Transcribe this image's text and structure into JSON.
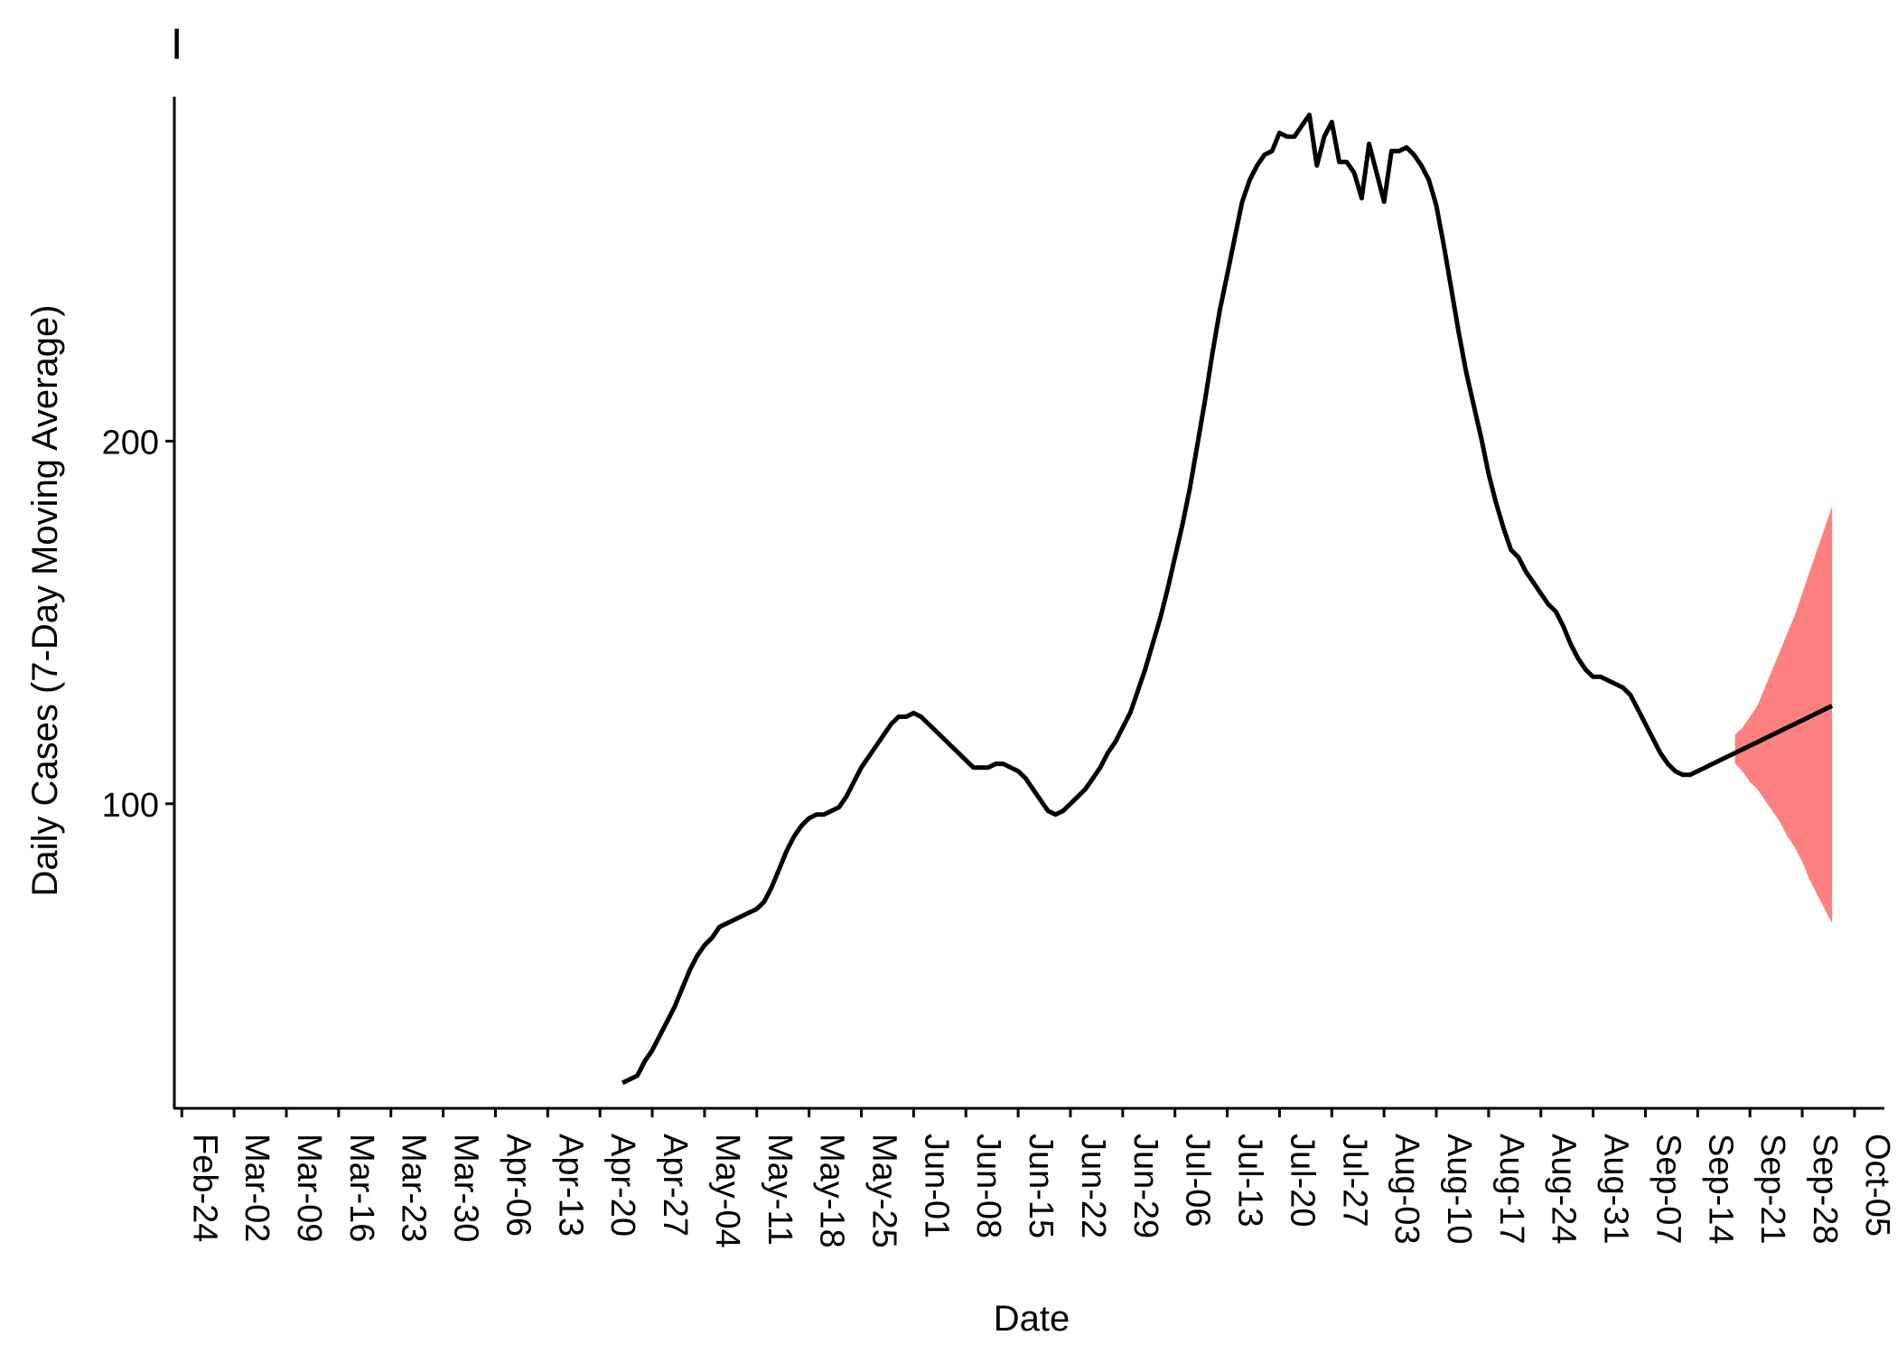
{
  "panel_tag": "I",
  "chart_data": {
    "type": "line",
    "title": "",
    "xlabel": "Date",
    "ylabel": "Daily Cases (7-Day Moving Average)",
    "x_tick_labels": [
      "Feb-24",
      "Mar-02",
      "Mar-09",
      "Mar-16",
      "Mar-23",
      "Mar-30",
      "Apr-06",
      "Apr-13",
      "Apr-20",
      "Apr-27",
      "May-04",
      "May-11",
      "May-18",
      "May-25",
      "Jun-01",
      "Jun-08",
      "Jun-15",
      "Jun-22",
      "Jun-29",
      "Jul-06",
      "Jul-13",
      "Jul-20",
      "Jul-27",
      "Aug-03",
      "Aug-10",
      "Aug-17",
      "Aug-24",
      "Aug-31",
      "Sep-07",
      "Sep-14",
      "Sep-21",
      "Sep-28",
      "Oct-05"
    ],
    "y_ticks": [
      100,
      200
    ],
    "ylim": [
      16,
      295
    ],
    "xlim": [
      "2020-02-23",
      "2020-10-09"
    ],
    "grid": false,
    "legend": "none",
    "colors": {
      "line": "#000000",
      "ribbon": "#FF8080"
    },
    "series": [
      {
        "values": [
          [
            "2020-04-23",
            23
          ],
          [
            "2020-04-24",
            24
          ],
          [
            "2020-04-25",
            25
          ],
          [
            "2020-04-26",
            29
          ],
          [
            "2020-04-27",
            32
          ],
          [
            "2020-04-28",
            36
          ],
          [
            "2020-04-29",
            40
          ],
          [
            "2020-04-30",
            44
          ],
          [
            "2020-05-01",
            49
          ],
          [
            "2020-05-02",
            54
          ],
          [
            "2020-05-03",
            58
          ],
          [
            "2020-05-04",
            61
          ],
          [
            "2020-05-05",
            63
          ],
          [
            "2020-05-06",
            66
          ],
          [
            "2020-05-07",
            67
          ],
          [
            "2020-05-08",
            68
          ],
          [
            "2020-05-09",
            69
          ],
          [
            "2020-05-10",
            70
          ],
          [
            "2020-05-11",
            71
          ],
          [
            "2020-05-12",
            73
          ],
          [
            "2020-05-13",
            77
          ],
          [
            "2020-05-14",
            82
          ],
          [
            "2020-05-15",
            87
          ],
          [
            "2020-05-16",
            91
          ],
          [
            "2020-05-17",
            94
          ],
          [
            "2020-05-18",
            96
          ],
          [
            "2020-05-19",
            97
          ],
          [
            "2020-05-20",
            97
          ],
          [
            "2020-05-21",
            98
          ],
          [
            "2020-05-22",
            99
          ],
          [
            "2020-05-23",
            102
          ],
          [
            "2020-05-24",
            106
          ],
          [
            "2020-05-25",
            110
          ],
          [
            "2020-05-26",
            113
          ],
          [
            "2020-05-27",
            116
          ],
          [
            "2020-05-28",
            119
          ],
          [
            "2020-05-29",
            122
          ],
          [
            "2020-05-30",
            124
          ],
          [
            "2020-05-31",
            124
          ],
          [
            "2020-06-01",
            125
          ],
          [
            "2020-06-02",
            124
          ],
          [
            "2020-06-03",
            122
          ],
          [
            "2020-06-04",
            120
          ],
          [
            "2020-06-05",
            118
          ],
          [
            "2020-06-06",
            116
          ],
          [
            "2020-06-07",
            114
          ],
          [
            "2020-06-08",
            112
          ],
          [
            "2020-06-09",
            110
          ],
          [
            "2020-06-10",
            110
          ],
          [
            "2020-06-11",
            110
          ],
          [
            "2020-06-12",
            111
          ],
          [
            "2020-06-13",
            111
          ],
          [
            "2020-06-14",
            110
          ],
          [
            "2020-06-15",
            109
          ],
          [
            "2020-06-16",
            107
          ],
          [
            "2020-06-17",
            104
          ],
          [
            "2020-06-18",
            101
          ],
          [
            "2020-06-19",
            98
          ],
          [
            "2020-06-20",
            97
          ],
          [
            "2020-06-21",
            98
          ],
          [
            "2020-06-22",
            100
          ],
          [
            "2020-06-23",
            102
          ],
          [
            "2020-06-24",
            104
          ],
          [
            "2020-06-25",
            107
          ],
          [
            "2020-06-26",
            110
          ],
          [
            "2020-06-27",
            114
          ],
          [
            "2020-06-28",
            117
          ],
          [
            "2020-06-29",
            121
          ],
          [
            "2020-06-30",
            125
          ],
          [
            "2020-07-01",
            131
          ],
          [
            "2020-07-02",
            137
          ],
          [
            "2020-07-03",
            144
          ],
          [
            "2020-07-04",
            151
          ],
          [
            "2020-07-05",
            159
          ],
          [
            "2020-07-06",
            168
          ],
          [
            "2020-07-07",
            177
          ],
          [
            "2020-07-08",
            187
          ],
          [
            "2020-07-09",
            199
          ],
          [
            "2020-07-10",
            211
          ],
          [
            "2020-07-11",
            224
          ],
          [
            "2020-07-12",
            236
          ],
          [
            "2020-07-13",
            246
          ],
          [
            "2020-07-14",
            256
          ],
          [
            "2020-07-15",
            266
          ],
          [
            "2020-07-16",
            272
          ],
          [
            "2020-07-17",
            276
          ],
          [
            "2020-07-18",
            279
          ],
          [
            "2020-07-19",
            280
          ],
          [
            "2020-07-20",
            285
          ],
          [
            "2020-07-21",
            284
          ],
          [
            "2020-07-22",
            284
          ],
          [
            "2020-07-23",
            287
          ],
          [
            "2020-07-24",
            290
          ],
          [
            "2020-07-25",
            276
          ],
          [
            "2020-07-26",
            284
          ],
          [
            "2020-07-27",
            288
          ],
          [
            "2020-07-28",
            277
          ],
          [
            "2020-07-29",
            277
          ],
          [
            "2020-07-30",
            274
          ],
          [
            "2020-07-31",
            267
          ],
          [
            "2020-08-01",
            282
          ],
          [
            "2020-08-02",
            274
          ],
          [
            "2020-08-03",
            266
          ],
          [
            "2020-08-04",
            280
          ],
          [
            "2020-08-05",
            280
          ],
          [
            "2020-08-06",
            281
          ],
          [
            "2020-08-07",
            279
          ],
          [
            "2020-08-08",
            276
          ],
          [
            "2020-08-09",
            272
          ],
          [
            "2020-08-10",
            265
          ],
          [
            "2020-08-11",
            254
          ],
          [
            "2020-08-12",
            242
          ],
          [
            "2020-08-13",
            230
          ],
          [
            "2020-08-14",
            219
          ],
          [
            "2020-08-15",
            210
          ],
          [
            "2020-08-16",
            201
          ],
          [
            "2020-08-17",
            191
          ],
          [
            "2020-08-18",
            183
          ],
          [
            "2020-08-19",
            176
          ],
          [
            "2020-08-20",
            170
          ],
          [
            "2020-08-21",
            168
          ],
          [
            "2020-08-22",
            164
          ],
          [
            "2020-08-23",
            161
          ],
          [
            "2020-08-24",
            158
          ],
          [
            "2020-08-25",
            155
          ],
          [
            "2020-08-26",
            153
          ],
          [
            "2020-08-27",
            149
          ],
          [
            "2020-08-28",
            144
          ],
          [
            "2020-08-29",
            140
          ],
          [
            "2020-08-30",
            137
          ],
          [
            "2020-08-31",
            135
          ],
          [
            "2020-09-01",
            135
          ],
          [
            "2020-09-02",
            134
          ],
          [
            "2020-09-03",
            133
          ],
          [
            "2020-09-04",
            132
          ],
          [
            "2020-09-05",
            130
          ],
          [
            "2020-09-06",
            126
          ],
          [
            "2020-09-07",
            122
          ],
          [
            "2020-09-08",
            118
          ],
          [
            "2020-09-09",
            114
          ],
          [
            "2020-09-10",
            111
          ],
          [
            "2020-09-11",
            109
          ],
          [
            "2020-09-12",
            108
          ],
          [
            "2020-09-13",
            108
          ],
          [
            "2020-09-14",
            109
          ],
          [
            "2020-09-15",
            110
          ],
          [
            "2020-09-16",
            111
          ],
          [
            "2020-09-17",
            112
          ],
          [
            "2020-09-18",
            113
          ],
          [
            "2020-09-19",
            114
          ],
          [
            "2020-09-20",
            115
          ],
          [
            "2020-09-21",
            116
          ],
          [
            "2020-09-22",
            117
          ],
          [
            "2020-09-23",
            118
          ],
          [
            "2020-09-24",
            119
          ],
          [
            "2020-09-25",
            120
          ],
          [
            "2020-09-26",
            121
          ],
          [
            "2020-09-27",
            122
          ],
          [
            "2020-09-28",
            123
          ],
          [
            "2020-09-29",
            124
          ],
          [
            "2020-09-30",
            125
          ],
          [
            "2020-10-01",
            126
          ],
          [
            "2020-10-02",
            127
          ]
        ]
      }
    ],
    "ribbon": {
      "x": [
        "2020-09-19",
        "2020-09-20",
        "2020-09-21",
        "2020-09-22",
        "2020-09-23",
        "2020-09-24",
        "2020-09-25",
        "2020-09-26",
        "2020-09-27",
        "2020-09-28",
        "2020-09-29",
        "2020-09-30",
        "2020-10-01",
        "2020-10-02"
      ],
      "lower": [
        111,
        109,
        106,
        104,
        101,
        98,
        95,
        91,
        88,
        84,
        79,
        75,
        71,
        67
      ],
      "upper": [
        119,
        121,
        124,
        127,
        132,
        137,
        142,
        147,
        152,
        158,
        164,
        170,
        176,
        182
      ]
    }
  }
}
